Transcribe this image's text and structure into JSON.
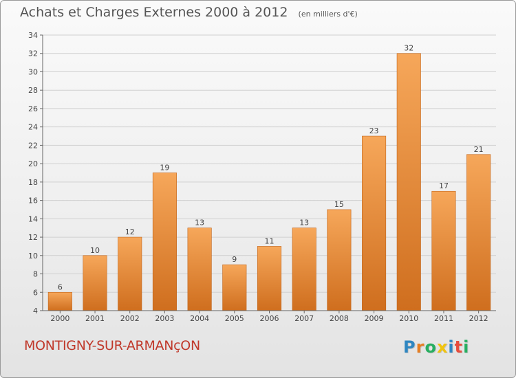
{
  "header": {
    "title": "Achats et Charges Externes 2000 à 2012",
    "subtitle": "(en milliers d'€)"
  },
  "footer": {
    "commune": "MONTIGNY-SUR-ARMANçON",
    "brand_letters": [
      "P",
      "r",
      "o",
      "x",
      "i",
      "t",
      "i"
    ],
    "brand_colors": [
      "#2e86c1",
      "#e67e22",
      "#27ae60",
      "#f1c40f",
      "#2e86c1",
      "#e74c3c",
      "#27ae60"
    ]
  },
  "colors": {
    "bar_top": "#f6a75a",
    "bar_bottom": "#cf6e1e",
    "bar_stroke": "#c0641a",
    "grid": "#cfcfcf",
    "axis": "#666666"
  },
  "chart_data": {
    "type": "bar",
    "title": "Achats et Charges Externes 2000 à 2012",
    "subtitle": "(en milliers d'€)",
    "categories": [
      "2000",
      "2001",
      "2002",
      "2003",
      "2004",
      "2005",
      "2006",
      "2007",
      "2008",
      "2009",
      "2010",
      "2011",
      "2012"
    ],
    "values": [
      6,
      10,
      12,
      19,
      13,
      9,
      11,
      13,
      15,
      23,
      32,
      17,
      21
    ],
    "data_labels": [
      "6",
      "10",
      "12",
      "19",
      "13",
      "9",
      "11",
      "13",
      "15",
      "23",
      "32",
      "17",
      "21"
    ],
    "ylim": [
      4,
      34
    ],
    "yticks": [
      4,
      6,
      8,
      10,
      12,
      14,
      16,
      18,
      20,
      22,
      24,
      26,
      28,
      30,
      32,
      34
    ],
    "ytick_labels": [
      "4",
      "6",
      "8",
      "10",
      "12",
      "14",
      "16",
      "18",
      "20",
      "22",
      "24",
      "26",
      "28",
      "30",
      "32",
      "34"
    ],
    "grid": true,
    "xlabel": "",
    "ylabel": ""
  }
}
